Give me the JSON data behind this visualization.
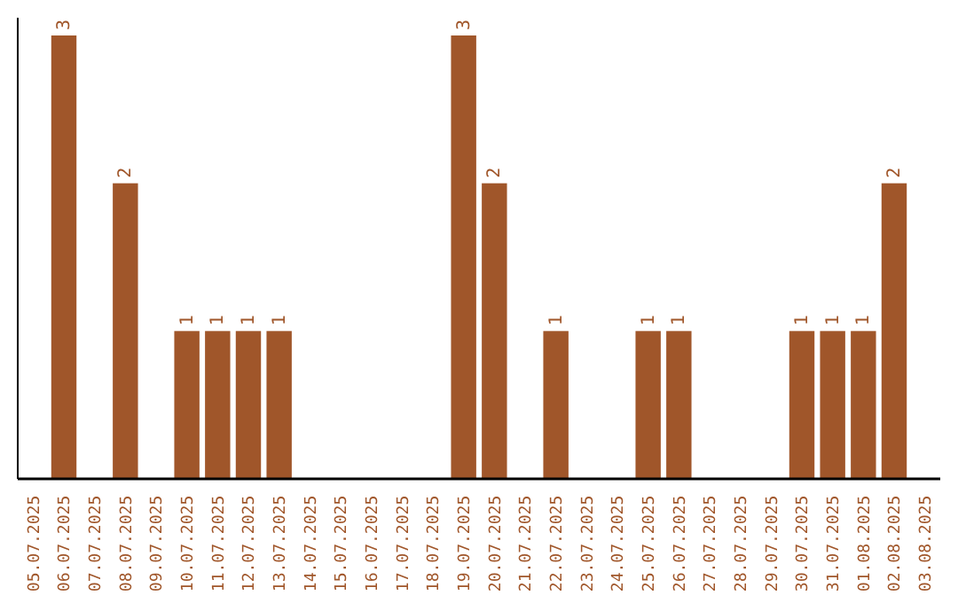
{
  "chart_data": {
    "type": "bar",
    "categories": [
      "05.07.2025",
      "06.07.2025",
      "07.07.2025",
      "08.07.2025",
      "09.07.2025",
      "10.07.2025",
      "11.07.2025",
      "12.07.2025",
      "13.07.2025",
      "14.07.2025",
      "15.07.2025",
      "16.07.2025",
      "17.07.2025",
      "18.07.2025",
      "19.07.2025",
      "20.07.2025",
      "21.07.2025",
      "22.07.2025",
      "23.07.2025",
      "24.07.2025",
      "25.07.2025",
      "26.07.2025",
      "27.07.2025",
      "28.07.2025",
      "29.07.2025",
      "30.07.2025",
      "31.07.2025",
      "01.08.2025",
      "02.08.2025",
      "03.08.2025"
    ],
    "values": [
      0,
      3,
      0,
      2,
      0,
      1,
      1,
      1,
      1,
      0,
      0,
      0,
      0,
      0,
      3,
      2,
      0,
      1,
      0,
      0,
      1,
      1,
      0,
      0,
      0,
      1,
      1,
      1,
      2,
      0
    ],
    "value_labels": [
      null,
      "3",
      null,
      "2",
      null,
      "1",
      "1",
      "1",
      "1",
      null,
      null,
      null,
      null,
      null,
      "3",
      "2",
      null,
      "1",
      null,
      null,
      "1",
      "1",
      null,
      null,
      null,
      "1",
      "1",
      "1",
      "2",
      null
    ],
    "color": "#a0562a",
    "tick_labels": "x"
  }
}
